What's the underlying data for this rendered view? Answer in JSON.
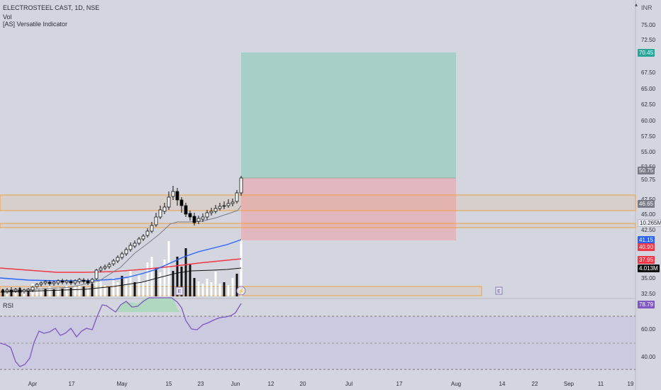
{
  "header": {
    "symbol_line": "ELECTROSTEEL CAST, 1D, NSE",
    "vol_label": "Vol",
    "indicator_label": "[AS] Versatile Indicator",
    "currency": "INR"
  },
  "price_axis": {
    "ticks": [
      "75.00",
      "72.50",
      "67.50",
      "65.00",
      "62.50",
      "60.00",
      "57.50",
      "55.00",
      "52.50",
      "50.75",
      "47.50",
      "45.00",
      "42.50",
      "35.00",
      "32.50"
    ]
  },
  "price_badges": {
    "target": "70.45",
    "last_price": "50.75",
    "upper_zone": "46.65",
    "volume": "10.265M",
    "ma_blue": "41.15",
    "ma_red_a": "40.90",
    "ma_red_b": "37.95",
    "volume_ma": "4.013M"
  },
  "rsi": {
    "label": "RSI",
    "value": "78.79",
    "ticks": [
      "60.00",
      "40.00"
    ]
  },
  "time_axis": {
    "labels": [
      "Apr",
      "17",
      "May",
      "15",
      "23",
      "Jun",
      "12",
      "20",
      "Jul",
      "17",
      "Aug",
      "14",
      "22",
      "Sep",
      "11",
      "19"
    ]
  },
  "event_markers": {
    "earnings": "E",
    "split": "⚡"
  },
  "colors": {
    "background": "#d3d6df",
    "candle_up": "#ffffff",
    "candle_down": "#000000",
    "target_zone": "#a7cfc8",
    "stop_zone": "#e2b7bf",
    "zone_line": "#f0a040",
    "ma_blue": "#2962ff",
    "ma_red": "#f23645",
    "rsi_line": "#7e57c2",
    "rsi_band": "#c9c6e0"
  }
}
